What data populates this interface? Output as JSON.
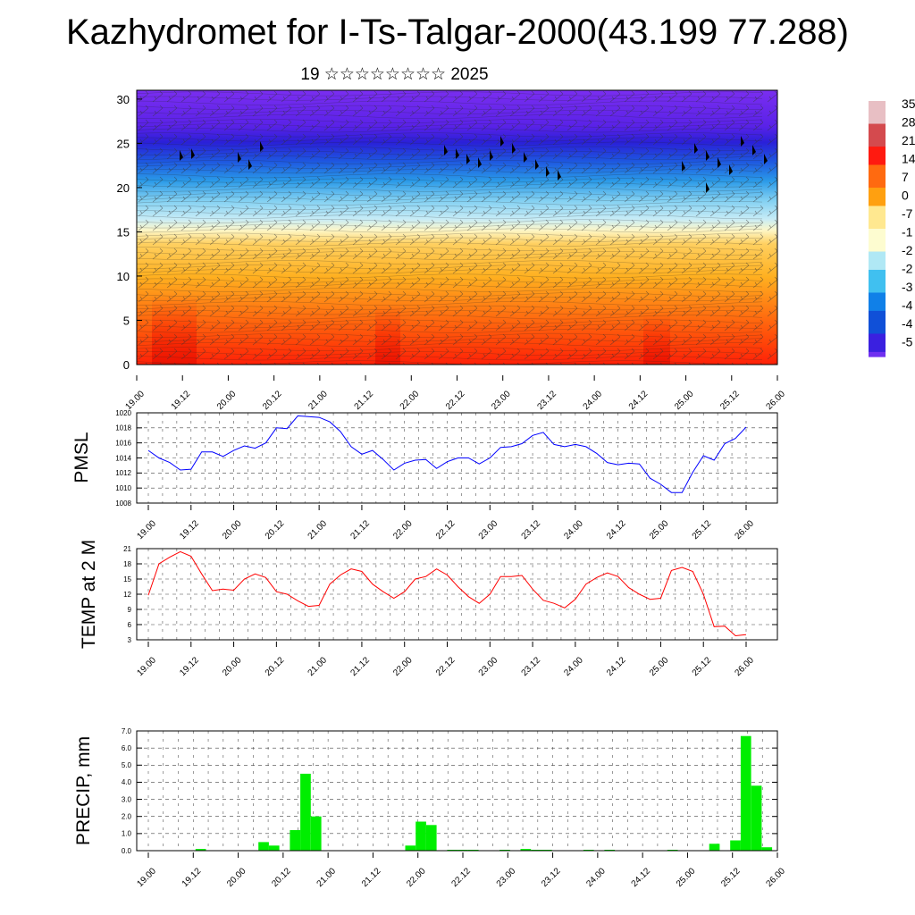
{
  "title": "Kazhydromet for I-Ts-Talgar-2000(43.199 77.288)",
  "subtitle": "19 ☆☆☆☆☆☆☆☆ 2025",
  "x_tick_labels": [
    "19.00",
    "19.12",
    "20.00",
    "20.12",
    "21.00",
    "21.12",
    "22.00",
    "22.12",
    "23.00",
    "23.12",
    "24.00",
    "24.12",
    "25.00",
    "25.12",
    "26.00"
  ],
  "chart_data": [
    {
      "type": "heatmap",
      "name": "temperature-wind-cross-section",
      "x_ticks": [
        "19.00",
        "19.12",
        "20.00",
        "20.12",
        "21.00",
        "21.12",
        "22.00",
        "22.12",
        "23.00",
        "23.12",
        "24.00",
        "24.12",
        "25.00",
        "25.12",
        "26.00"
      ],
      "y_ticks": [
        0,
        5,
        10,
        15,
        20,
        25,
        30
      ],
      "ylim": [
        0,
        31
      ],
      "colorbar_labels": [
        "35",
        "28",
        "21",
        "14",
        "7",
        "0",
        "-7",
        "-1",
        "-2",
        "-2",
        "-3",
        "-4",
        "-4",
        "-5"
      ],
      "colorbar_colors": [
        "#e8bfc4",
        "#d44a4e",
        "#ff1a10",
        "#ff6a10",
        "#ffa010",
        "#ffe890",
        "#fdfcd0",
        "#b0e8f5",
        "#40c0f0",
        "#1080e8",
        "#1050d8",
        "#3a20e0",
        "#7030f0"
      ]
    },
    {
      "type": "line",
      "ylabel": "PMSL",
      "ylim": [
        1008,
        1020
      ],
      "y_ticks": [
        1008,
        1010,
        1012,
        1014,
        1016,
        1018,
        1020
      ],
      "color": "#0000ff",
      "x": [
        0,
        3,
        6,
        9,
        12,
        15,
        18,
        21,
        24,
        27,
        30,
        33,
        36,
        39,
        42,
        45,
        48,
        51,
        54,
        57,
        60,
        63,
        66,
        69,
        72,
        75,
        78,
        81,
        84,
        87,
        90,
        93,
        96,
        99,
        102,
        105,
        108,
        111,
        114,
        117,
        120,
        123,
        126,
        129,
        132,
        135,
        138,
        141,
        144,
        147,
        150,
        153,
        156,
        159,
        162,
        165,
        168
      ],
      "values": [
        1015.0,
        1014.0,
        1013.4,
        1012.4,
        1012.5,
        1014.8,
        1014.8,
        1014.2,
        1015.0,
        1015.6,
        1015.3,
        1016.0,
        1018.0,
        1017.9,
        1019.6,
        1019.5,
        1019.4,
        1018.8,
        1017.5,
        1015.5,
        1014.5,
        1015.0,
        1013.8,
        1012.4,
        1013.3,
        1013.7,
        1013.8,
        1012.6,
        1013.5,
        1014.0,
        1014.0,
        1013.2,
        1014.0,
        1015.4,
        1015.5,
        1015.9,
        1017.0,
        1017.4,
        1015.8,
        1015.5,
        1015.8,
        1015.5,
        1014.6,
        1013.4,
        1013.1,
        1013.3,
        1013.2,
        1011.3,
        1010.5,
        1009.4,
        1009.4,
        1012.1,
        1014.3,
        1013.7,
        1015.9,
        1016.6,
        1018.1
      ]
    },
    {
      "type": "line",
      "ylabel": "TEMP at 2 M",
      "ylim": [
        3,
        21
      ],
      "y_ticks": [
        3,
        6,
        9,
        12,
        15,
        18,
        21
      ],
      "color": "#ff0000",
      "x": [
        0,
        3,
        6,
        9,
        12,
        15,
        18,
        21,
        24,
        27,
        30,
        33,
        36,
        39,
        42,
        45,
        48,
        51,
        54,
        57,
        60,
        63,
        66,
        69,
        72,
        75,
        78,
        81,
        84,
        87,
        90,
        93,
        96,
        99,
        102,
        105,
        108,
        111,
        114,
        117,
        120,
        123,
        126,
        129,
        132,
        135,
        138,
        141,
        144,
        147,
        150,
        153,
        156,
        159,
        162,
        165,
        168
      ],
      "values": [
        11.8,
        18.0,
        19.3,
        20.4,
        19.5,
        16.0,
        12.7,
        13.0,
        12.8,
        15.0,
        16.0,
        15.3,
        12.5,
        12.0,
        10.7,
        9.6,
        9.8,
        14.0,
        15.8,
        17.0,
        16.5,
        14.0,
        12.5,
        11.2,
        12.5,
        15.0,
        15.5,
        17.0,
        15.8,
        13.5,
        11.5,
        10.2,
        12.0,
        15.5,
        15.5,
        15.7,
        13.0,
        10.8,
        10.2,
        9.3,
        11.0,
        14.0,
        15.3,
        16.2,
        15.5,
        13.3,
        12.0,
        11.0,
        11.2,
        16.7,
        17.3,
        16.5,
        12.0,
        5.6,
        5.7,
        3.8,
        4.0
      ]
    },
    {
      "type": "bar",
      "ylabel": "PRECIP, mm",
      "ylim": [
        0,
        7
      ],
      "y_ticks": [
        "0.0",
        "1.0",
        "2.0",
        "3.0",
        "4.0",
        "5.0",
        "6.0",
        "7.0"
      ],
      "color": "#00ee00",
      "x": [
        15,
        33,
        36,
        42,
        45,
        48,
        75,
        78,
        81,
        87,
        90,
        93,
        102,
        108,
        111,
        114,
        126,
        132,
        150,
        162,
        168,
        171,
        174,
        177
      ],
      "values": [
        0.1,
        0.5,
        0.3,
        1.2,
        4.5,
        2.0,
        0.3,
        1.7,
        1.5,
        0.05,
        0.05,
        0.05,
        0.05,
        0.1,
        0.05,
        0.05,
        0.05,
        0.05,
        0.05,
        0.4,
        0.6,
        6.7,
        3.8,
        0.2
      ]
    }
  ]
}
